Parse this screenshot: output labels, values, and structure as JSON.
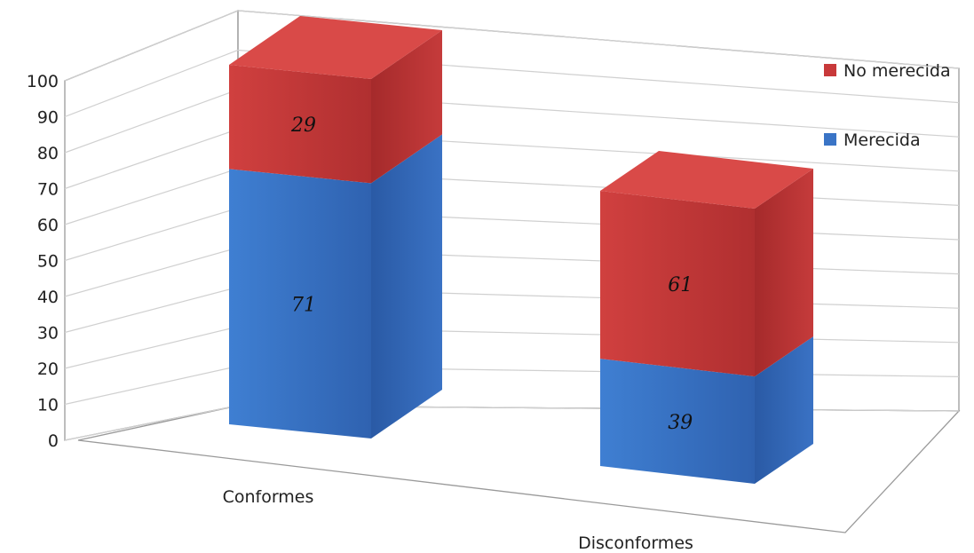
{
  "chart_data": {
    "type": "bar",
    "stacked": true,
    "three_d": true,
    "categories": [
      "Conformes",
      "Disconformes"
    ],
    "series": [
      {
        "name": "Merecida",
        "values": [
          71,
          39
        ],
        "color": "#3a74c6"
      },
      {
        "name": "No merecida",
        "values": [
          29,
          61
        ],
        "color": "#c8393a"
      }
    ],
    "data_labels": [
      [
        "71",
        "39"
      ],
      [
        "29",
        "61"
      ]
    ],
    "ylim": [
      0,
      100
    ],
    "yticks": [
      "0",
      "10",
      "20",
      "30",
      "40",
      "50",
      "60",
      "70",
      "80",
      "90",
      "100"
    ],
    "grid": true,
    "legend": {
      "placement": "top-right",
      "entries": [
        "No merecida",
        "Merecida"
      ]
    }
  }
}
